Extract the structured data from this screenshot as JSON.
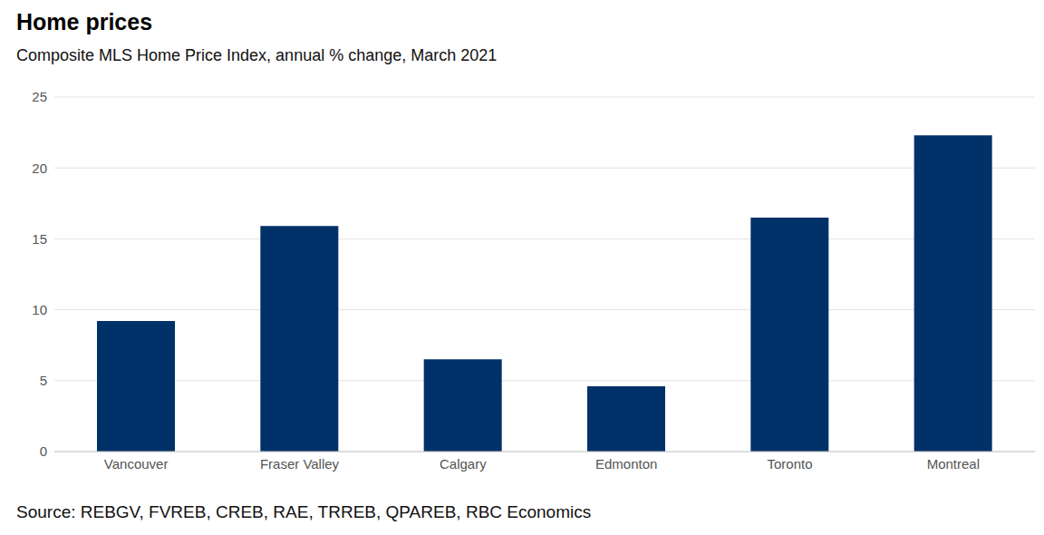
{
  "chart_data": {
    "type": "bar",
    "title": "Home prices",
    "subtitle": "Composite MLS Home Price Index, annual % change, March 2021",
    "source": "Source: REBGV, FVREB, CREB, RAE, TRREB, QPAREB, RBC Economics",
    "categories": [
      "Vancouver",
      "Fraser Valley",
      "Calgary",
      "Edmonton",
      "Toronto",
      "Montreal"
    ],
    "values": [
      9.2,
      15.9,
      6.5,
      4.6,
      16.5,
      22.3
    ],
    "color": "#003168",
    "ylim": [
      0,
      25
    ],
    "yticks": [
      0,
      5,
      10,
      15,
      20,
      25
    ],
    "grid": true
  }
}
